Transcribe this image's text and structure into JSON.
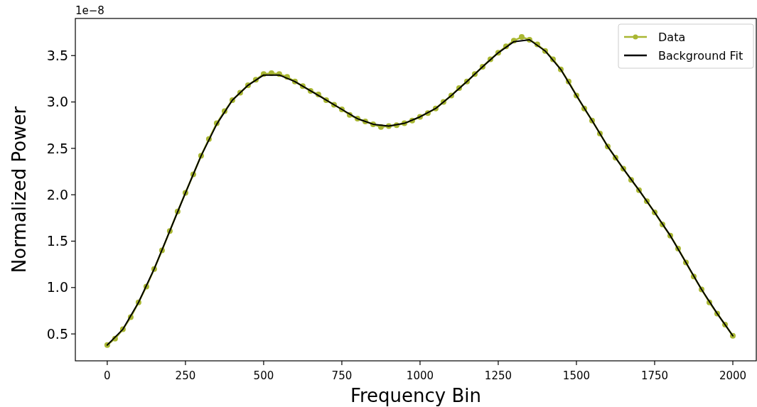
{
  "chart_data": {
    "type": "line",
    "xlabel": "Frequency Bin",
    "ylabel": "Normalized Power",
    "annotations": [
      "1e−8"
    ],
    "xlim": [
      -102,
      2075
    ],
    "ylim": [
      0.21,
      3.9
    ],
    "xticks": [
      0,
      250,
      500,
      750,
      1000,
      1250,
      1500,
      1750,
      2000
    ],
    "yticks": [
      0.5,
      {
        "value": 1,
        "label": "1.0"
      },
      1.5,
      {
        "value": 2,
        "label": "2.0"
      },
      2.5,
      {
        "value": 3,
        "label": "3.0"
      },
      3.5
    ],
    "grid": false,
    "legend": "top right",
    "series": [
      {
        "name": "Data",
        "color": "#a9b732",
        "marker": "circle",
        "x": [
          0,
          25,
          50,
          75,
          100,
          125,
          150,
          175,
          200,
          225,
          250,
          275,
          300,
          325,
          350,
          375,
          400,
          425,
          450,
          475,
          500,
          525,
          550,
          575,
          600,
          625,
          650,
          675,
          700,
          725,
          750,
          775,
          800,
          825,
          850,
          875,
          900,
          925,
          950,
          975,
          1000,
          1025,
          1050,
          1075,
          1100,
          1125,
          1150,
          1175,
          1200,
          1225,
          1250,
          1275,
          1300,
          1325,
          1350,
          1375,
          1400,
          1425,
          1450,
          1475,
          1500,
          1525,
          1550,
          1575,
          1600,
          1625,
          1650,
          1675,
          1700,
          1725,
          1750,
          1775,
          1800,
          1825,
          1850,
          1875,
          1900,
          1925,
          1950,
          1975,
          2000
        ],
        "values": [
          0.38,
          0.45,
          0.55,
          0.68,
          0.84,
          1.01,
          1.2,
          1.4,
          1.61,
          1.82,
          2.02,
          2.22,
          2.42,
          2.6,
          2.77,
          2.9,
          3.02,
          3.1,
          3.18,
          3.24,
          3.3,
          3.31,
          3.3,
          3.27,
          3.22,
          3.17,
          3.12,
          3.08,
          3.02,
          2.97,
          2.92,
          2.86,
          2.82,
          2.79,
          2.76,
          2.73,
          2.74,
          2.75,
          2.77,
          2.8,
          2.84,
          2.88,
          2.93,
          3.0,
          3.07,
          3.15,
          3.22,
          3.3,
          3.38,
          3.46,
          3.53,
          3.6,
          3.66,
          3.7,
          3.67,
          3.62,
          3.55,
          3.46,
          3.35,
          3.22,
          3.07,
          2.93,
          2.8,
          2.66,
          2.52,
          2.4,
          2.28,
          2.16,
          2.05,
          1.93,
          1.81,
          1.68,
          1.56,
          1.42,
          1.27,
          1.12,
          0.98,
          0.84,
          0.72,
          0.6,
          0.48
        ]
      },
      {
        "name": "Background Fit",
        "color": "#000000",
        "marker": "none",
        "x": [
          0,
          50,
          100,
          150,
          200,
          250,
          300,
          350,
          400,
          450,
          500,
          550,
          600,
          650,
          700,
          750,
          800,
          850,
          900,
          950,
          1000,
          1050,
          1100,
          1150,
          1200,
          1250,
          1300,
          1350,
          1400,
          1450,
          1500,
          1550,
          1600,
          1650,
          1700,
          1750,
          1800,
          1850,
          1900,
          1950,
          2000
        ],
        "values": [
          0.38,
          0.55,
          0.84,
          1.2,
          1.61,
          2.02,
          2.42,
          2.76,
          3.02,
          3.18,
          3.29,
          3.29,
          3.22,
          3.12,
          3.02,
          2.92,
          2.82,
          2.76,
          2.74,
          2.77,
          2.84,
          2.93,
          3.07,
          3.22,
          3.38,
          3.53,
          3.65,
          3.67,
          3.55,
          3.35,
          3.07,
          2.8,
          2.52,
          2.28,
          2.05,
          1.81,
          1.56,
          1.27,
          0.98,
          0.72,
          0.48
        ]
      }
    ]
  }
}
